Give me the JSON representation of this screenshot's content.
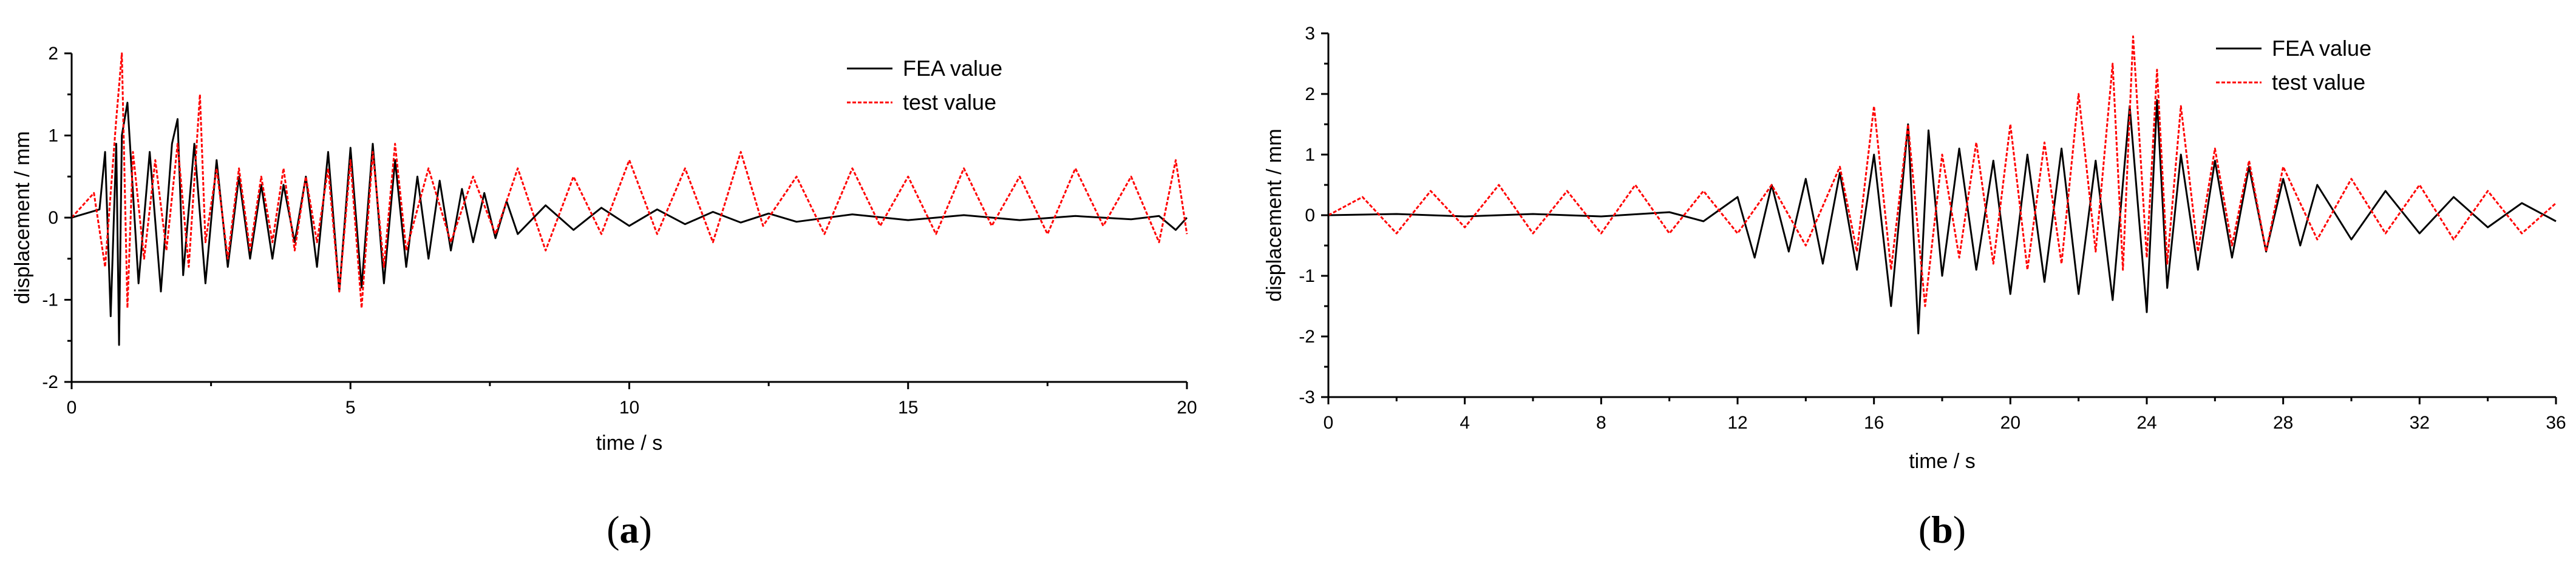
{
  "chart_data": [
    {
      "panel": "(a)",
      "panel_letter": "a",
      "type": "line",
      "xlabel": "time / s",
      "ylabel": "displacement / mm",
      "xlim": [
        0,
        20
      ],
      "ylim": [
        -2,
        2
      ],
      "xticks": [
        0,
        5,
        10,
        15,
        20
      ],
      "xtick_labels": [
        "0",
        "5",
        "10",
        "15",
        "20"
      ],
      "yticks": [
        -2,
        -1,
        0,
        1,
        2
      ],
      "ytick_labels": [
        "-2",
        "-1",
        "0",
        "1",
        "2"
      ],
      "legend_position": "top-right",
      "series": [
        {
          "name": "FEA value",
          "color": "#000000",
          "style": "solid",
          "x": [
            0,
            0.5,
            0.6,
            0.7,
            0.8,
            0.85,
            0.9,
            1.0,
            1.2,
            1.4,
            1.6,
            1.8,
            1.9,
            2.0,
            2.2,
            2.4,
            2.6,
            2.8,
            3.0,
            3.2,
            3.4,
            3.6,
            3.8,
            4.0,
            4.2,
            4.4,
            4.6,
            4.8,
            5.0,
            5.2,
            5.4,
            5.6,
            5.8,
            6.0,
            6.2,
            6.4,
            6.6,
            6.8,
            7.0,
            7.2,
            7.4,
            7.6,
            7.8,
            8.0,
            8.5,
            9.0,
            9.5,
            10.0,
            10.5,
            11.0,
            11.5,
            12.0,
            12.5,
            13.0,
            14.0,
            15.0,
            16.0,
            17.0,
            18.0,
            19.0,
            19.5,
            19.8,
            20.0
          ],
          "y": [
            0,
            0.1,
            0.8,
            -1.2,
            0.9,
            -1.55,
            1.0,
            1.4,
            -0.8,
            0.8,
            -0.9,
            0.9,
            1.2,
            -0.7,
            0.9,
            -0.8,
            0.7,
            -0.6,
            0.5,
            -0.5,
            0.4,
            -0.5,
            0.4,
            -0.3,
            0.5,
            -0.6,
            0.8,
            -0.9,
            0.85,
            -0.85,
            0.9,
            -0.8,
            0.7,
            -0.6,
            0.5,
            -0.5,
            0.45,
            -0.4,
            0.35,
            -0.3,
            0.3,
            -0.25,
            0.2,
            -0.2,
            0.15,
            -0.15,
            0.12,
            -0.1,
            0.1,
            -0.08,
            0.07,
            -0.06,
            0.05,
            -0.05,
            0.04,
            -0.03,
            0.03,
            -0.03,
            0.02,
            -0.02,
            0.02,
            -0.15,
            0.0
          ]
        },
        {
          "name": "test value",
          "color": "#ff0000",
          "style": "dashed",
          "x": [
            0,
            0.4,
            0.6,
            0.8,
            0.9,
            1.0,
            1.1,
            1.3,
            1.5,
            1.7,
            1.9,
            2.1,
            2.3,
            2.4,
            2.6,
            2.8,
            3.0,
            3.2,
            3.4,
            3.6,
            3.8,
            4.0,
            4.2,
            4.4,
            4.6,
            4.8,
            5.0,
            5.2,
            5.4,
            5.6,
            5.8,
            6.0,
            6.4,
            6.8,
            7.2,
            7.6,
            8.0,
            8.5,
            9.0,
            9.5,
            10.0,
            10.5,
            11.0,
            11.5,
            12.0,
            12.4,
            13.0,
            13.5,
            14.0,
            14.5,
            15.0,
            15.5,
            16.0,
            16.5,
            17.0,
            17.5,
            18.0,
            18.5,
            19.0,
            19.5,
            19.8,
            20.0
          ],
          "y": [
            0,
            0.3,
            -0.6,
            1.2,
            2.0,
            -1.1,
            0.8,
            -0.5,
            0.7,
            -0.4,
            0.9,
            -0.6,
            1.5,
            -0.3,
            0.6,
            -0.5,
            0.6,
            -0.4,
            0.5,
            -0.3,
            0.6,
            -0.4,
            0.5,
            -0.3,
            0.6,
            -0.9,
            0.7,
            -1.1,
            0.8,
            -0.6,
            0.9,
            -0.4,
            0.6,
            -0.3,
            0.5,
            -0.2,
            0.6,
            -0.4,
            0.5,
            -0.2,
            0.7,
            -0.2,
            0.6,
            -0.3,
            0.8,
            -0.1,
            0.5,
            -0.2,
            0.6,
            -0.1,
            0.5,
            -0.2,
            0.6,
            -0.1,
            0.5,
            -0.2,
            0.6,
            -0.1,
            0.5,
            -0.3,
            0.7,
            -0.2
          ]
        }
      ]
    },
    {
      "panel": "(b)",
      "panel_letter": "b",
      "type": "line",
      "xlabel": "time / s",
      "ylabel": "displacement / mm",
      "xlim": [
        0,
        36
      ],
      "ylim": [
        -3,
        3
      ],
      "xticks": [
        0,
        4,
        8,
        12,
        16,
        20,
        24,
        28,
        32,
        36
      ],
      "xtick_labels": [
        "0",
        "4",
        "8",
        "12",
        "16",
        "20",
        "24",
        "28",
        "32",
        "36"
      ],
      "yticks": [
        -3,
        -2,
        -1,
        0,
        1,
        2,
        3
      ],
      "ytick_labels": [
        "-3",
        "-2",
        "-1",
        "0",
        "1",
        "2",
        "3"
      ],
      "legend_position": "top-right",
      "series": [
        {
          "name": "FEA value",
          "color": "#000000",
          "style": "solid",
          "x": [
            0,
            2,
            4,
            6,
            8,
            10,
            11,
            12,
            12.5,
            13,
            13.5,
            14,
            14.5,
            15,
            15.5,
            16,
            16.5,
            17,
            17.3,
            17.6,
            18,
            18.5,
            19,
            19.5,
            20,
            20.5,
            21,
            21.5,
            22,
            22.5,
            23,
            23.5,
            24,
            24.3,
            24.6,
            25,
            25.5,
            26,
            26.5,
            27,
            27.5,
            28,
            28.5,
            29,
            30,
            31,
            32,
            33,
            34,
            35,
            36
          ],
          "y": [
            0,
            0.02,
            -0.02,
            0.02,
            -0.02,
            0.05,
            -0.1,
            0.3,
            -0.7,
            0.5,
            -0.6,
            0.6,
            -0.8,
            0.7,
            -0.9,
            1.0,
            -1.5,
            1.5,
            -1.95,
            1.4,
            -1.0,
            1.1,
            -0.9,
            0.9,
            -1.3,
            1.0,
            -1.1,
            1.1,
            -1.3,
            0.9,
            -1.4,
            1.8,
            -1.6,
            1.9,
            -1.2,
            1.0,
            -0.9,
            0.9,
            -0.7,
            0.8,
            -0.6,
            0.6,
            -0.5,
            0.5,
            -0.4,
            0.4,
            -0.3,
            0.3,
            -0.2,
            0.2,
            -0.1
          ]
        },
        {
          "name": "test value",
          "color": "#ff0000",
          "style": "dashed",
          "x": [
            0,
            1,
            2,
            3,
            4,
            5,
            6,
            7,
            8,
            9,
            10,
            11,
            12,
            13,
            14,
            15,
            15.5,
            16,
            16.5,
            17,
            17.5,
            18,
            18.5,
            19,
            19.5,
            20,
            20.5,
            21,
            21.5,
            22,
            22.5,
            23,
            23.3,
            23.6,
            24,
            24.3,
            24.6,
            25,
            25.5,
            26,
            26.5,
            27,
            27.5,
            28,
            29,
            30,
            31,
            32,
            33,
            34,
            35,
            36
          ],
          "y": [
            0,
            0.3,
            -0.3,
            0.4,
            -0.2,
            0.5,
            -0.3,
            0.4,
            -0.3,
            0.5,
            -0.3,
            0.4,
            -0.3,
            0.5,
            -0.5,
            0.8,
            -0.6,
            1.8,
            -0.9,
            1.5,
            -1.5,
            1.0,
            -0.7,
            1.2,
            -0.8,
            1.5,
            -0.9,
            1.2,
            -0.8,
            2.0,
            -0.6,
            2.5,
            -0.9,
            2.95,
            -0.7,
            2.4,
            -0.8,
            1.8,
            -0.6,
            1.1,
            -0.5,
            0.9,
            -0.6,
            0.8,
            -0.4,
            0.6,
            -0.3,
            0.5,
            -0.4,
            0.4,
            -0.3,
            0.2
          ]
        }
      ]
    }
  ]
}
